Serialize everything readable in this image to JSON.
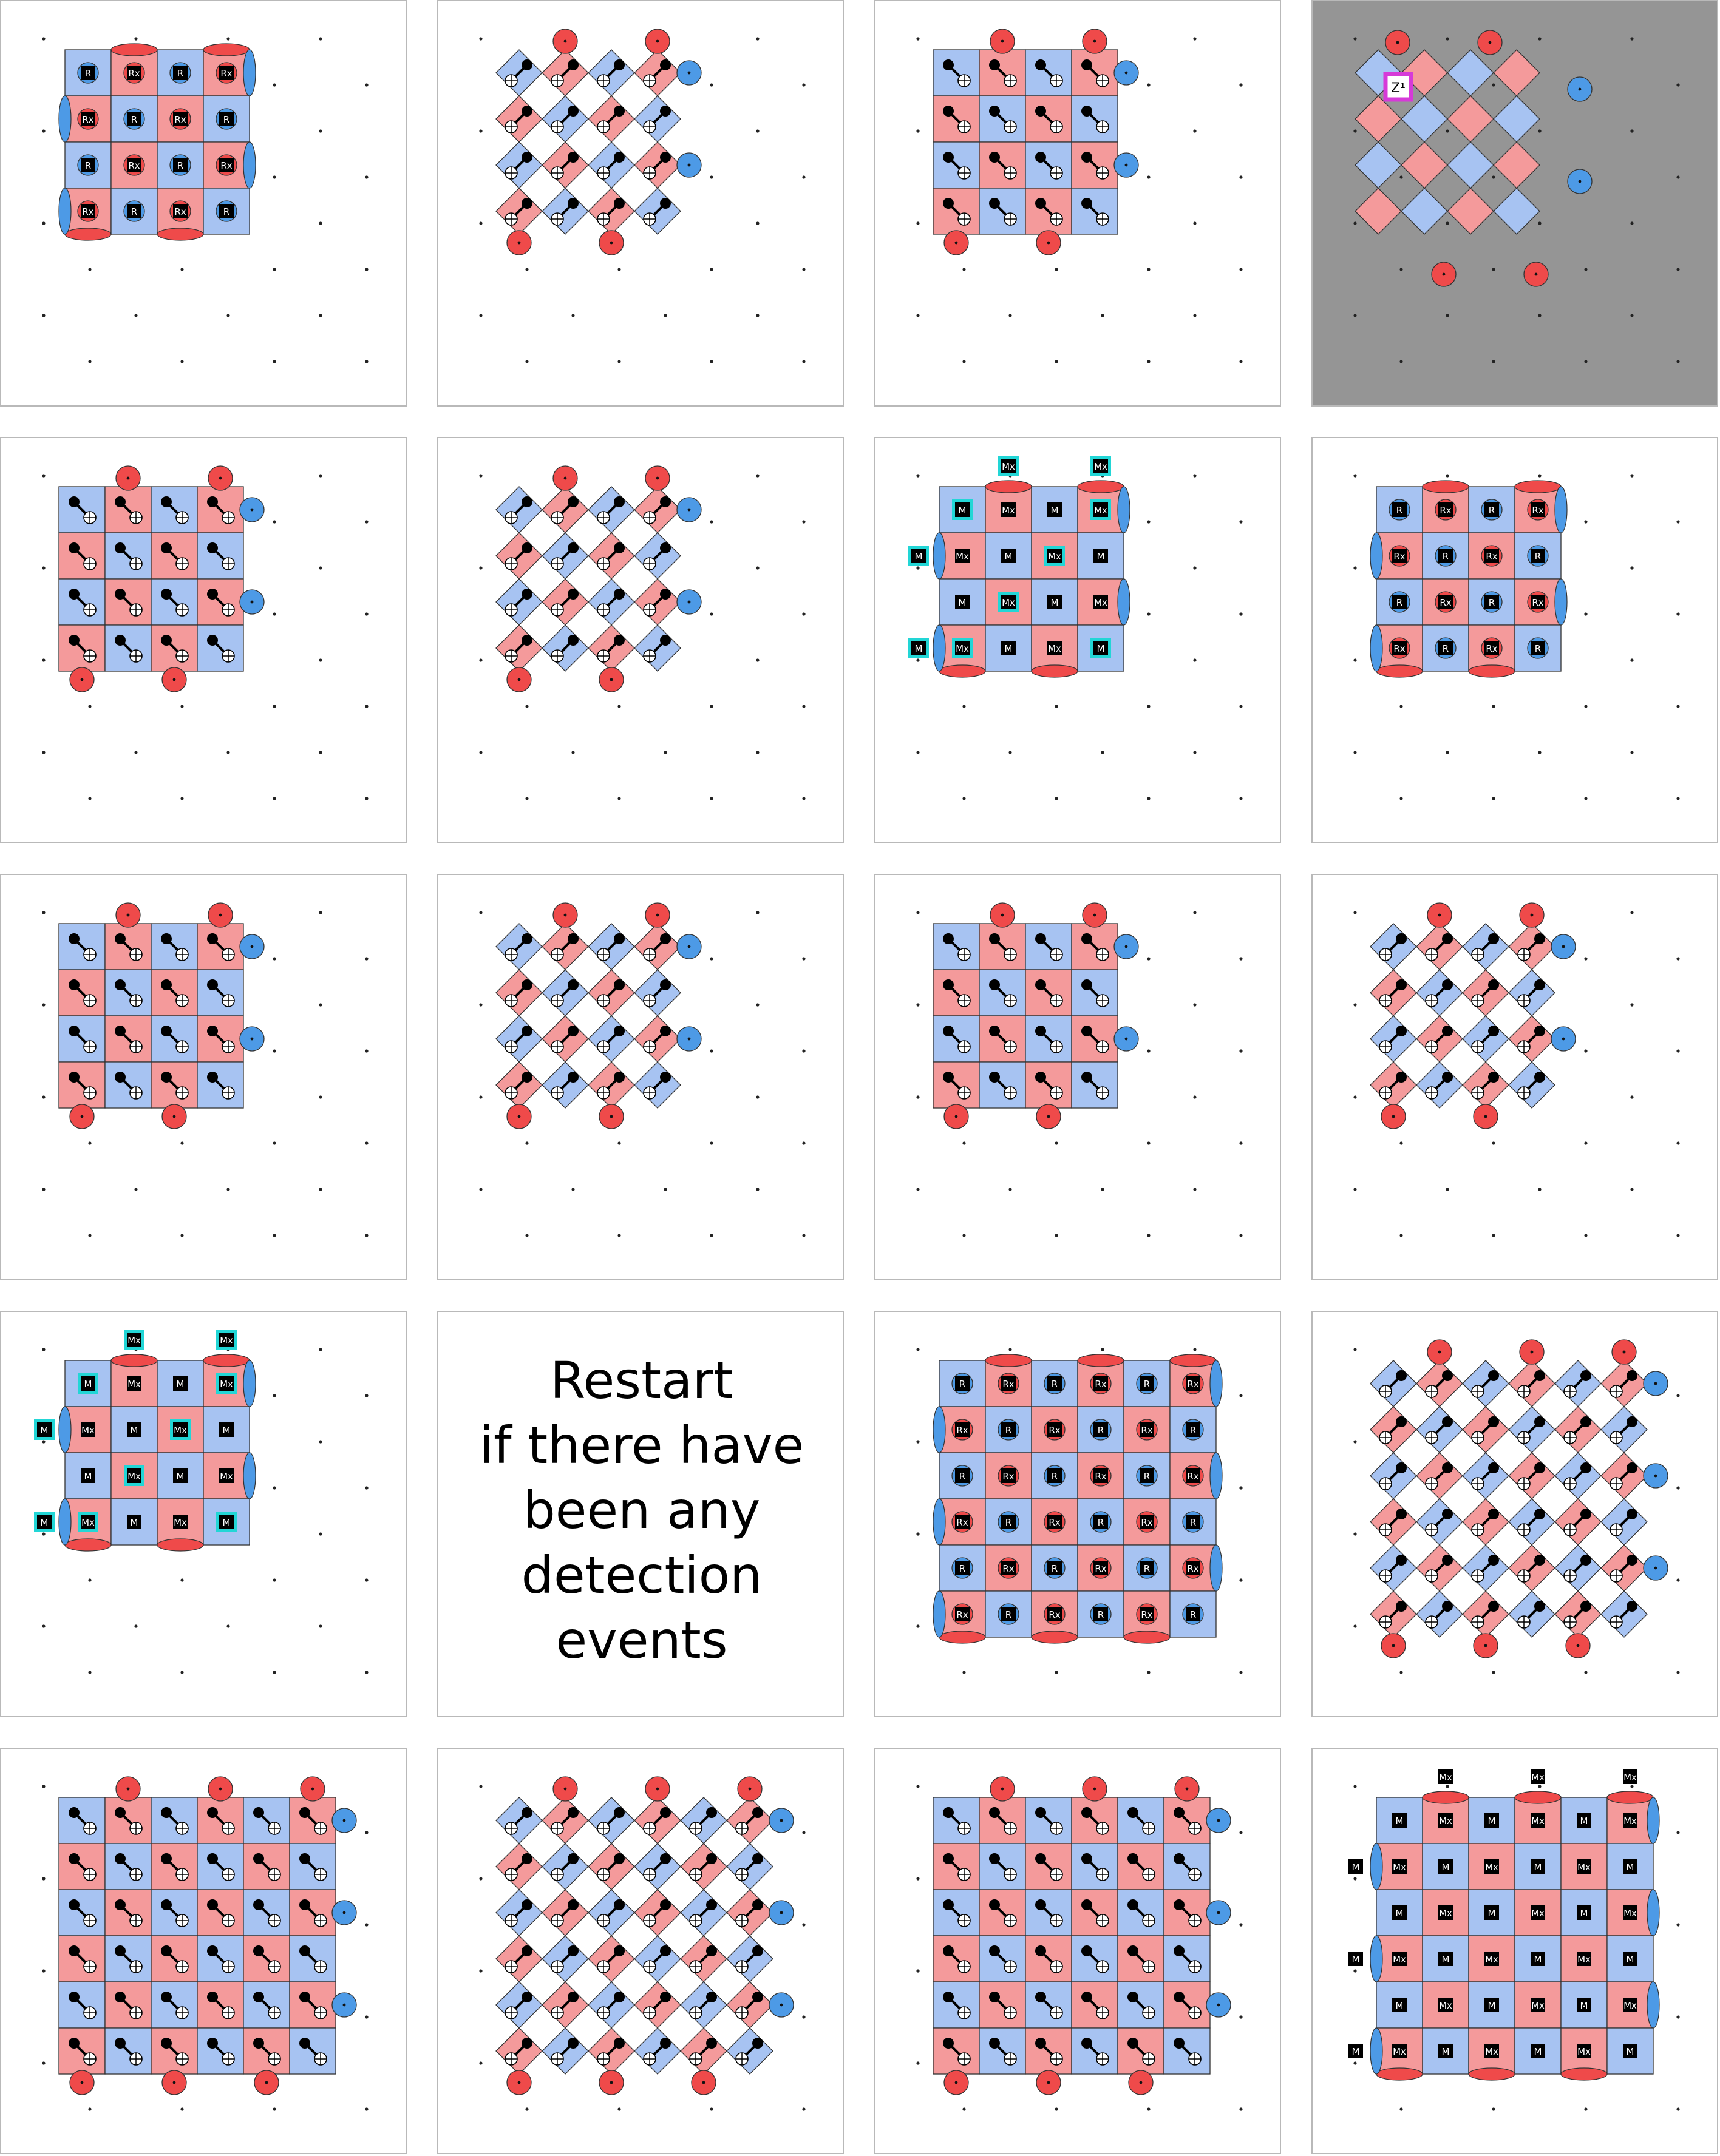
{
  "colors": {
    "x_stabilizer": "#f49a9b",
    "z_stabilizer": "#a7c3f2",
    "x_node": "#ef4a4a",
    "z_node": "#4d9ae6",
    "dark_panel": "#959595",
    "annotation_magenta": "#d63ad8",
    "measure_highlight": "#22d6d6"
  },
  "gate_labels": {
    "reset_z": "R",
    "reset_x": "Rx",
    "measure_z": "M",
    "measure_x": "Mx",
    "pauli_annotation": "Z¹"
  },
  "restart_note": {
    "lines": [
      "Restart",
      "if there have",
      "been any",
      "detection",
      "events"
    ]
  },
  "panels": [
    {
      "kind": "reset-layer"
    },
    {
      "kind": "cnot-layer"
    },
    {
      "kind": "cnot-layer"
    },
    {
      "kind": "annotated-patch"
    },
    {
      "kind": "cnot-layer"
    },
    {
      "kind": "cnot-layer"
    },
    {
      "kind": "measure-layer"
    },
    {
      "kind": "reset-layer"
    },
    {
      "kind": "cnot-layer"
    },
    {
      "kind": "cnot-layer"
    },
    {
      "kind": "cnot-layer"
    },
    {
      "kind": "cnot-layer"
    },
    {
      "kind": "measure-layer"
    },
    {
      "kind": "restart-note"
    },
    {
      "kind": "reset-layer"
    },
    {
      "kind": "cnot-layer"
    },
    {
      "kind": "cnot-layer"
    },
    {
      "kind": "cnot-layer"
    },
    {
      "kind": "cnot-layer"
    },
    {
      "kind": "measure-layer"
    }
  ]
}
